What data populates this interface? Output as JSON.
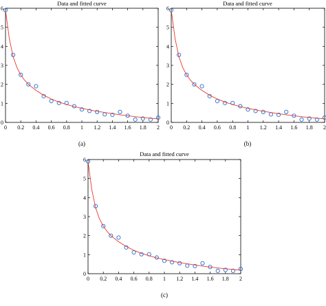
{
  "colors": {
    "fit_line": "#e8382a",
    "data_points": "#1f6fd6",
    "axes": "#000000"
  },
  "chart_data": [
    {
      "type": "scatter",
      "panel_label": "(a)",
      "title": "Data and fitted curve",
      "xlabel": "",
      "ylabel": "",
      "xlim": [
        0,
        2
      ],
      "ylim": [
        0,
        6
      ],
      "xticks": [
        "0",
        "0.2",
        "0.4",
        "0.6",
        "0.8",
        "1",
        "1.2",
        "1.4",
        "1.6",
        "1.8",
        "2"
      ],
      "yticks": [
        "0",
        "1",
        "2",
        "3",
        "4",
        "5",
        "6"
      ],
      "grid": false,
      "series": [
        {
          "kind": "scatter",
          "x": [
            0,
            0.1,
            0.2,
            0.3,
            0.4,
            0.5,
            0.6,
            0.7,
            0.8,
            0.9,
            1.0,
            1.1,
            1.2,
            1.3,
            1.4,
            1.5,
            1.6,
            1.7,
            1.8,
            1.9,
            2.0
          ],
          "y": [
            5.9,
            3.55,
            2.5,
            2.0,
            1.9,
            1.38,
            1.12,
            1.02,
            1.02,
            0.85,
            0.68,
            0.6,
            0.55,
            0.42,
            0.4,
            0.55,
            0.35,
            0.15,
            0.2,
            0.15,
            0.25
          ]
        },
        {
          "kind": "line",
          "x": [
            0,
            0.05,
            0.1,
            0.15,
            0.2,
            0.25,
            0.3,
            0.4,
            0.5,
            0.6,
            0.7,
            0.8,
            0.9,
            1.0,
            1.1,
            1.2,
            1.3,
            1.4,
            1.5,
            1.6,
            1.7,
            1.8,
            1.9,
            2.0
          ],
          "y": [
            5.9,
            4.4,
            3.45,
            2.88,
            2.5,
            2.22,
            2.0,
            1.68,
            1.43,
            1.23,
            1.07,
            0.94,
            0.83,
            0.74,
            0.66,
            0.58,
            0.52,
            0.46,
            0.4,
            0.35,
            0.3,
            0.26,
            0.22,
            0.19
          ]
        }
      ]
    },
    {
      "type": "scatter",
      "panel_label": "(b)",
      "title": "Data and fitted curve",
      "xlabel": "",
      "ylabel": "",
      "xlim": [
        0,
        2
      ],
      "ylim": [
        0,
        6
      ],
      "xticks": [
        "0",
        "0.2",
        "0.4",
        "0.6",
        "0.8",
        "1",
        "1.2",
        "1.4",
        "1.6",
        "1.8",
        "2"
      ],
      "yticks": [
        "0",
        "1",
        "2",
        "3",
        "4",
        "5",
        "6"
      ],
      "grid": false,
      "series": [
        {
          "kind": "scatter",
          "x": [
            0,
            0.1,
            0.2,
            0.3,
            0.4,
            0.5,
            0.6,
            0.7,
            0.8,
            0.9,
            1.0,
            1.1,
            1.2,
            1.3,
            1.4,
            1.5,
            1.6,
            1.7,
            1.8,
            1.9,
            2.0
          ],
          "y": [
            5.9,
            3.55,
            2.5,
            2.0,
            1.9,
            1.38,
            1.12,
            1.02,
            1.02,
            0.85,
            0.68,
            0.6,
            0.55,
            0.42,
            0.4,
            0.55,
            0.35,
            0.15,
            0.2,
            0.15,
            0.25
          ]
        },
        {
          "kind": "line",
          "x": [
            0,
            0.05,
            0.1,
            0.15,
            0.2,
            0.25,
            0.3,
            0.4,
            0.5,
            0.6,
            0.7,
            0.8,
            0.9,
            1.0,
            1.1,
            1.2,
            1.3,
            1.4,
            1.5,
            1.6,
            1.7,
            1.8,
            1.9,
            2.0
          ],
          "y": [
            5.9,
            4.4,
            3.45,
            2.88,
            2.5,
            2.22,
            2.0,
            1.68,
            1.43,
            1.23,
            1.07,
            0.94,
            0.83,
            0.74,
            0.66,
            0.58,
            0.52,
            0.46,
            0.4,
            0.35,
            0.3,
            0.26,
            0.22,
            0.19
          ]
        }
      ]
    },
    {
      "type": "scatter",
      "panel_label": "(c)",
      "title": "Data and fitted curve",
      "xlabel": "",
      "ylabel": "",
      "xlim": [
        0,
        2
      ],
      "ylim": [
        0,
        6
      ],
      "xticks": [
        "0",
        "0.2",
        "0.4",
        "0.6",
        "0.8",
        "1",
        "1.2",
        "1.4",
        "1.6",
        "1.8",
        "2"
      ],
      "yticks": [
        "0",
        "1",
        "2",
        "3",
        "4",
        "5",
        "6"
      ],
      "grid": false,
      "series": [
        {
          "kind": "scatter",
          "x": [
            0,
            0.1,
            0.2,
            0.3,
            0.4,
            0.5,
            0.6,
            0.7,
            0.8,
            0.9,
            1.0,
            1.1,
            1.2,
            1.3,
            1.4,
            1.5,
            1.6,
            1.7,
            1.8,
            1.9,
            2.0
          ],
          "y": [
            5.9,
            3.55,
            2.5,
            2.0,
            1.9,
            1.38,
            1.12,
            1.02,
            1.02,
            0.85,
            0.68,
            0.6,
            0.55,
            0.42,
            0.4,
            0.55,
            0.35,
            0.15,
            0.2,
            0.15,
            0.25
          ]
        },
        {
          "kind": "line",
          "x": [
            0,
            0.05,
            0.1,
            0.15,
            0.2,
            0.25,
            0.3,
            0.4,
            0.5,
            0.6,
            0.7,
            0.8,
            0.9,
            1.0,
            1.1,
            1.2,
            1.3,
            1.4,
            1.5,
            1.6,
            1.7,
            1.8,
            1.9,
            2.0
          ],
          "y": [
            5.9,
            4.4,
            3.45,
            2.88,
            2.5,
            2.22,
            2.0,
            1.68,
            1.43,
            1.23,
            1.07,
            0.94,
            0.83,
            0.74,
            0.66,
            0.58,
            0.52,
            0.46,
            0.4,
            0.35,
            0.3,
            0.26,
            0.22,
            0.19
          ]
        }
      ]
    }
  ]
}
